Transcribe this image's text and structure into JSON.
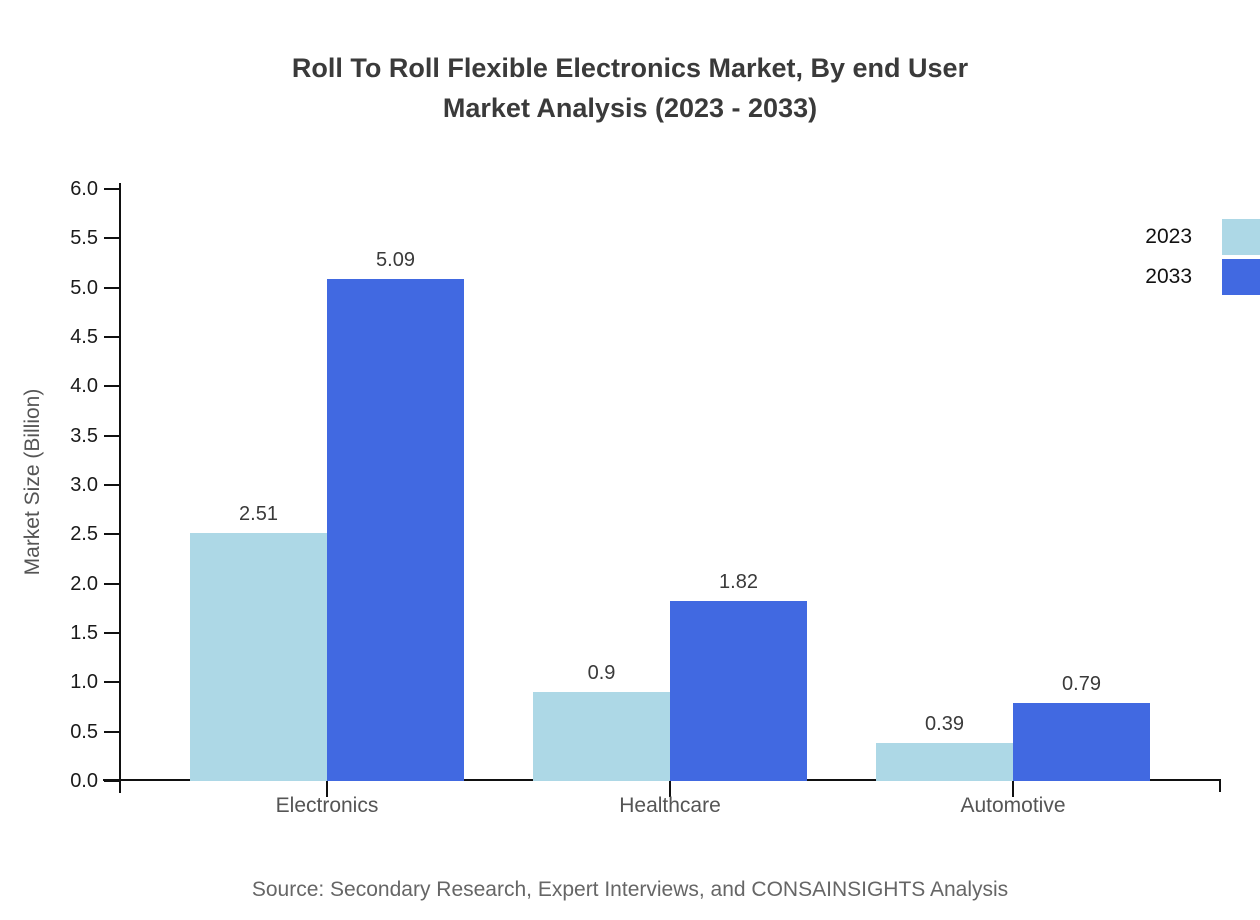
{
  "title": {
    "line1": "Roll To Roll Flexible Electronics Market, By end User",
    "line2": "Market Analysis (2023 - 2033)"
  },
  "source": "Source: Secondary Research, Expert Interviews, and CONSAINSIGHTS Analysis",
  "chart_data": {
    "type": "bar",
    "categories": [
      "Electronics",
      "Healthcare",
      "Automotive"
    ],
    "series": [
      {
        "name": "2023",
        "color": "#ADD8E6",
        "values": [
          2.51,
          0.9,
          0.39
        ]
      },
      {
        "name": "2033",
        "color": "#4169E1",
        "values": [
          5.09,
          1.82,
          0.79
        ]
      }
    ],
    "title": "Roll To Roll Flexible Electronics Market, By end User Market Analysis (2023 - 2033)",
    "xlabel": "",
    "ylabel": "Market Size (Billion)",
    "ylim": [
      0,
      6
    ],
    "ytick_step": 0.5,
    "grid": false,
    "legend_position": "top-right",
    "bar_value_labels": true
  }
}
